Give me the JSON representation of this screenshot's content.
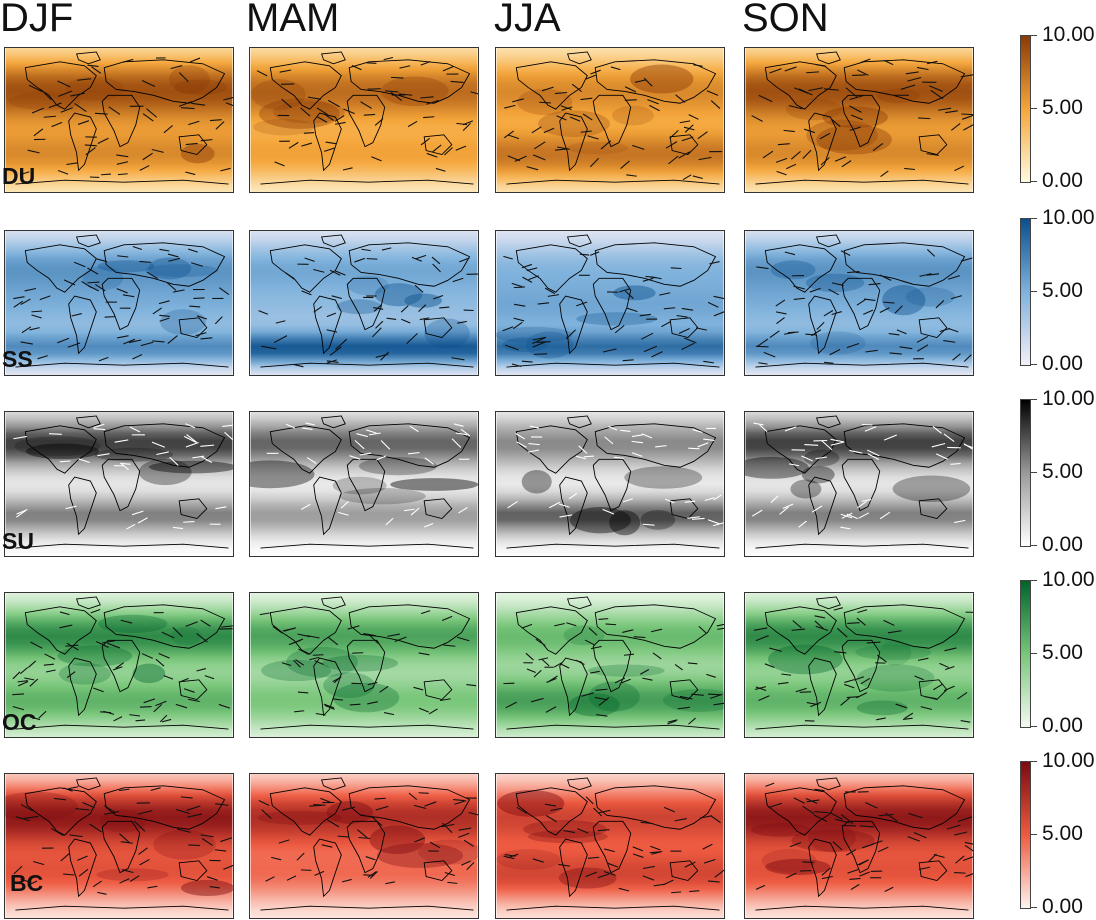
{
  "seasons": [
    "DJF",
    "MAM",
    "JJA",
    "SON"
  ],
  "rows": [
    {
      "label": "DU",
      "colors": [
        "#fffbe0",
        "#f5a63a",
        "#8a3a06"
      ],
      "vector_color": "#111111"
    },
    {
      "label": "SS",
      "colors": [
        "#f4eff7",
        "#7fb2dc",
        "#0b4f8c"
      ],
      "vector_color": "#111111"
    },
    {
      "label": "SU",
      "colors": [
        "#ffffff",
        "#9a9a9a",
        "#000000"
      ],
      "vector_color": "#ffffff"
    },
    {
      "label": "OC",
      "colors": [
        "#f4fbf1",
        "#78c679",
        "#00642a"
      ],
      "vector_color": "#111111"
    },
    {
      "label": "BC",
      "colors": [
        "#fff4ee",
        "#ee5a40",
        "#7a0a10"
      ],
      "vector_color": "#111111"
    }
  ],
  "colorbar_ticks": [
    "10.00",
    "5.00",
    "0.00"
  ]
}
